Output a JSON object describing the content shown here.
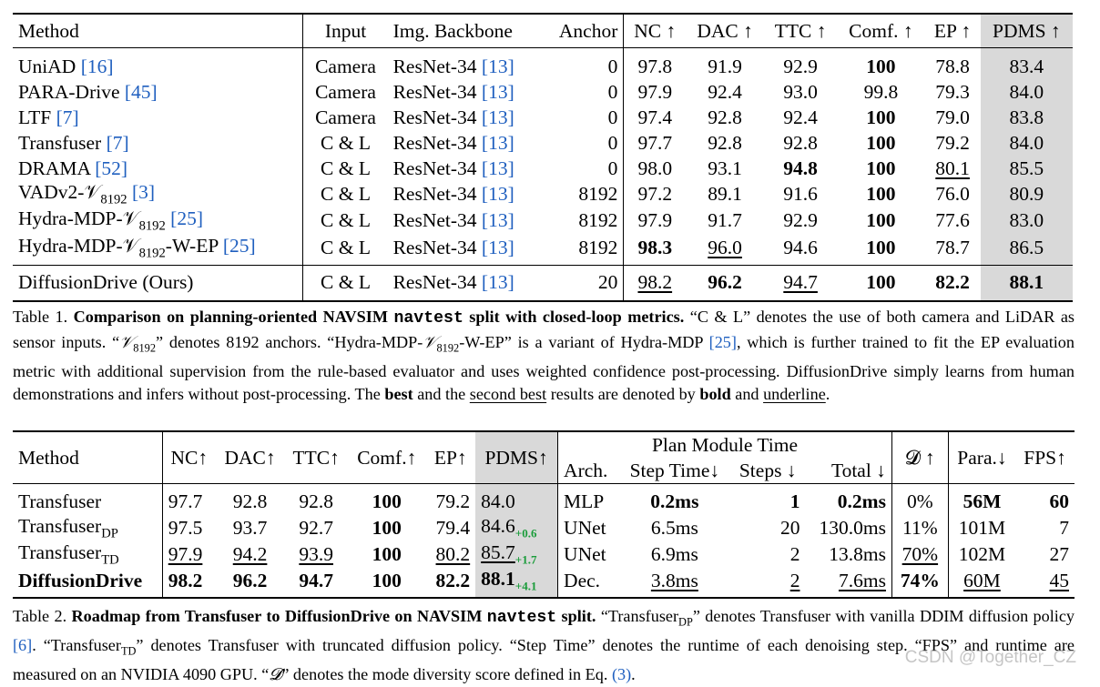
{
  "table1": {
    "headers": [
      "Method",
      "Input",
      "Img. Backbone",
      "Anchor",
      "NC ↑",
      "DAC ↑",
      "TTC ↑",
      "Comf. ↑",
      "EP ↑",
      "PDMS ↑"
    ],
    "rows": [
      {
        "name": "UniAD ",
        "ref": "[16]",
        "input": "Camera",
        "backbone": "ResNet-34 ",
        "bref": "[13]",
        "anchor": "0",
        "nc": "97.8",
        "dac": "91.9",
        "ttc": "92.9",
        "comf": "100",
        "ep": "78.8",
        "pdms": "83.4"
      },
      {
        "name": "PARA-Drive ",
        "ref": "[45]",
        "input": "Camera",
        "backbone": "ResNet-34 ",
        "bref": "[13]",
        "anchor": "0",
        "nc": "97.9",
        "dac": "92.4",
        "ttc": "93.0",
        "comf": "99.8",
        "ep": "79.3",
        "pdms": "84.0"
      },
      {
        "name": "LTF ",
        "ref": "[7]",
        "input": "Camera",
        "backbone": "ResNet-34 ",
        "bref": "[13]",
        "anchor": "0",
        "nc": "97.4",
        "dac": "92.8",
        "ttc": "92.4",
        "comf": "100",
        "ep": "79.0",
        "pdms": "83.8"
      },
      {
        "name": "Transfuser ",
        "ref": "[7]",
        "input": "C & L",
        "backbone": "ResNet-34 ",
        "bref": "[13]",
        "anchor": "0",
        "nc": "97.7",
        "dac": "92.8",
        "ttc": "92.8",
        "comf": "100",
        "ep": "79.2",
        "pdms": "84.0"
      },
      {
        "name": "DRAMA ",
        "ref": "[52]",
        "input": "C & L",
        "backbone": "ResNet-34 ",
        "bref": "[13]",
        "anchor": "0",
        "nc": "98.0",
        "dac": "93.1",
        "ttc": "94.8",
        "comf": "100",
        "ep": "80.1",
        "pdms": "85.5"
      },
      {
        "name": "VADv2-𝒱",
        "sub": "8192",
        "tail": " ",
        "ref": "[3]",
        "input": "C & L",
        "backbone": "ResNet-34 ",
        "bref": "[13]",
        "anchor": "8192",
        "nc": "97.2",
        "dac": "89.1",
        "ttc": "91.6",
        "comf": "100",
        "ep": "76.0",
        "pdms": "80.9"
      },
      {
        "name": "Hydra-MDP-𝒱",
        "sub": "8192",
        "tail": " ",
        "ref": "[25]",
        "input": "C & L",
        "backbone": "ResNet-34 ",
        "bref": "[13]",
        "anchor": "8192",
        "nc": "97.9",
        "dac": "91.7",
        "ttc": "92.9",
        "comf": "100",
        "ep": "77.6",
        "pdms": "83.0"
      },
      {
        "name": "Hydra-MDP-𝒱",
        "sub": "8192",
        "tail": "-W-EP ",
        "ref": "[25]",
        "input": "C & L",
        "backbone": "ResNet-34 ",
        "bref": "[13]",
        "anchor": "8192",
        "nc": "98.3",
        "dac": "96.0",
        "ttc": "94.6",
        "comf": "100",
        "ep": "78.7",
        "pdms": "86.5"
      }
    ],
    "ours": {
      "name": "DiffusionDrive (Ours)",
      "input": "C & L",
      "backbone": "ResNet-34 ",
      "bref": "[13]",
      "anchor": "20",
      "nc": "98.2",
      "dac": "96.2",
      "ttc": "94.7",
      "comf": "100",
      "ep": "82.2",
      "pdms": "88.1"
    }
  },
  "caption1": {
    "label": "Table 1.",
    "bold_a": "Comparison on planning-oriented NAVSIM ",
    "mono": "navtest",
    "bold_b": " split with closed-loop metrics.",
    "t1": " “C & L” denotes the use of both camera and LiDAR as sensor inputs. “",
    "v1": "𝒱",
    "s1": "8192",
    "t2": "” denotes 8192 anchors. “Hydra-MDP-",
    "v2": "𝒱",
    "s2": "8192",
    "t3": "-W-EP” is a variant of Hydra-MDP ",
    "ref": "[25]",
    "t4": ", which is further trained to fit the EP evaluation metric with additional supervision from the rule-based evaluator and uses weighted confidence post-processing. DiffusionDrive simply learns from human demonstrations and infers without post-processing. The ",
    "best": "best",
    "t5": " and the ",
    "second": "second best",
    "t6": " results are denoted by ",
    "bold_word": "bold",
    "t7": " and ",
    "underline_word": "underline",
    "t8": "."
  },
  "table2": {
    "headers": {
      "method": "Method",
      "nc": "NC↑",
      "dac": "DAC↑",
      "ttc": "TTC↑",
      "comf": "Comf.↑",
      "ep": "EP↑",
      "pdms": "PDMS↑",
      "plan": "Plan Module Time",
      "arch": "Arch.",
      "step_time": "Step Time↓",
      "steps": "Steps ↓",
      "total": "Total ↓",
      "d": "𝓓 ↑",
      "para": "Para.↓",
      "fps": "FPS↑"
    },
    "rows": [
      {
        "name": "Transfuser",
        "sub": "",
        "nc": "97.7",
        "dac": "92.8",
        "ttc": "92.8",
        "comf": "100",
        "ep": "79.2",
        "pdms": "84.0",
        "delta": "",
        "arch": "MLP",
        "step_time": "0.2ms",
        "steps": "1",
        "total": "0.2ms",
        "d": "0%",
        "para": "56M",
        "fps": "60"
      },
      {
        "name": "Transfuser",
        "sub": "DP",
        "nc": "97.5",
        "dac": "93.7",
        "ttc": "92.7",
        "comf": "100",
        "ep": "79.4",
        "pdms": "84.6",
        "delta": "+0.6",
        "arch": "UNet",
        "step_time": "6.5ms",
        "steps": "20",
        "total": "130.0ms",
        "d": "11%",
        "para": "101M",
        "fps": "7"
      },
      {
        "name": "Transfuser",
        "sub": "TD",
        "nc": "97.9",
        "dac": "94.2",
        "ttc": "93.9",
        "comf": "100",
        "ep": "80.2",
        "pdms": "85.7",
        "delta": "+1.7",
        "arch": "UNet",
        "step_time": "6.9ms",
        "steps": "2",
        "total": "13.8ms",
        "d": "70%",
        "para": "102M",
        "fps": "27"
      },
      {
        "name": "DiffusionDrive",
        "sub": "",
        "nc": "98.2",
        "dac": "96.2",
        "ttc": "94.7",
        "comf": "100",
        "ep": "82.2",
        "pdms": "88.1",
        "delta": "+4.1",
        "arch": "Dec.",
        "step_time": "3.8ms",
        "steps": "2",
        "total": "7.6ms",
        "d": "74%",
        "para": "60M",
        "fps": "45"
      }
    ]
  },
  "caption2": {
    "label": "Table 2.",
    "bold_a": "Roadmap from Transfuser to DiffusionDrive on NAVSIM ",
    "mono": "navtest",
    "bold_b": " split.",
    "t1": " “Transfuser",
    "s1": "DP",
    "t2": "” denotes Transfuser with vanilla DDIM diffusion policy ",
    "ref1": "[6]",
    "t3": ". “Transfuser",
    "s2": "TD",
    "t4": "” denotes Transfuser with truncated diffusion policy. “Step Time” denotes the runtime of each denoising step. “FPS” and runtime are measured on an NVIDIA 4090 GPU. “",
    "d": "𝓓",
    "t5": "” denotes the mode diversity score defined in Eq. ",
    "ref2": "(3)",
    "t6": "."
  },
  "watermark": "CSDN @Together_CZ"
}
